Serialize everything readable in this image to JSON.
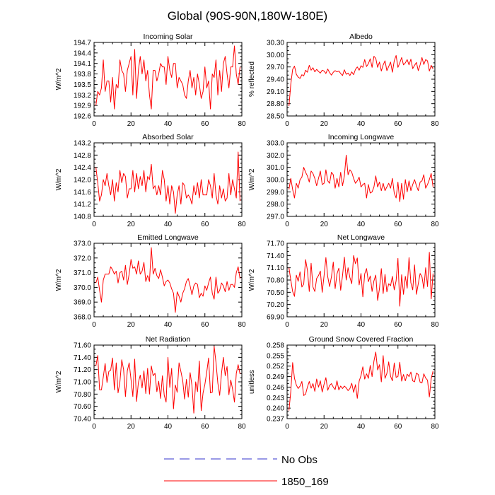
{
  "title": "Global (90S-90N,180W-180E)",
  "colors": {
    "series": "#ff0000",
    "obs": "#3333cc",
    "axis": "#000000"
  },
  "legend": [
    {
      "label": "No Obs",
      "style": "dashed",
      "color": "#3333cc"
    },
    {
      "label": "1850_169",
      "style": "solid",
      "color": "#ff0000"
    }
  ],
  "chart_data": [
    {
      "type": "line",
      "title": "Incoming Solar",
      "ylabel": "W/m^2",
      "xlabel": "",
      "xlim": [
        0,
        80
      ],
      "ylim": [
        192.6,
        194.7
      ],
      "xticks": [
        "0",
        "20",
        "40",
        "60",
        "80"
      ],
      "yticks": [
        "192.6",
        "192.9",
        "193.2",
        "193.5",
        "193.8",
        "194.1",
        "194.4",
        "194.7"
      ],
      "series": [
        {
          "name": "1850_169",
          "values": [
            192.9,
            193.3,
            193.2,
            193.4,
            194.2,
            193.3,
            193.6,
            193.6,
            193.0,
            193.7,
            192.8,
            193.5,
            193.4,
            194.2,
            193.9,
            193.8,
            193.3,
            193.9,
            194.1,
            194.3,
            193.2,
            194.5,
            193.1,
            193.9,
            194.3,
            193.8,
            194.2,
            193.6,
            193.9,
            193.2,
            192.8,
            193.9,
            193.9,
            193.6,
            193.8,
            194.1,
            194.0,
            194.0,
            193.5,
            194.3,
            193.9,
            193.7,
            194.1,
            194.1,
            193.4,
            193.7,
            193.6,
            193.5,
            193.2,
            193.1,
            193.6,
            193.9,
            193.4,
            193.7,
            193.2,
            193.8,
            193.5,
            193.1,
            193.3,
            194.0,
            193.4,
            193.6,
            192.8,
            193.8,
            193.7,
            194.2,
            193.2,
            193.9,
            193.3,
            194.1,
            194.3,
            193.8,
            193.4,
            194.0,
            194.0,
            194.6,
            193.8,
            193.5,
            194.0
          ]
        }
      ]
    },
    {
      "type": "line",
      "title": "Albedo",
      "ylabel": "% reflected",
      "xlabel": "",
      "xlim": [
        0,
        80
      ],
      "ylim": [
        28.5,
        30.3
      ],
      "xticks": [
        "0",
        "20",
        "40",
        "60",
        "80"
      ],
      "yticks": [
        "28.50",
        "28.80",
        "29.10",
        "29.40",
        "29.70",
        "30.00",
        "30.30"
      ],
      "series": [
        {
          "name": "1850_169",
          "values": [
            28.74,
            29.28,
            29.64,
            29.72,
            29.52,
            29.45,
            29.42,
            29.51,
            29.48,
            29.62,
            29.57,
            29.74,
            29.62,
            29.68,
            29.58,
            29.64,
            29.59,
            29.55,
            29.62,
            29.6,
            29.54,
            29.65,
            29.56,
            29.5,
            29.57,
            29.61,
            29.58,
            29.6,
            29.54,
            29.49,
            29.63,
            29.52,
            29.55,
            29.49,
            29.58,
            29.51,
            29.64,
            29.7,
            29.62,
            29.73,
            29.69,
            29.88,
            29.71,
            29.78,
            29.9,
            29.69,
            29.96,
            29.91,
            29.69,
            29.82,
            29.6,
            29.75,
            29.85,
            29.61,
            29.71,
            29.82,
            29.57,
            29.85,
            29.98,
            29.69,
            29.8,
            29.93,
            29.75,
            29.8,
            29.88,
            29.75,
            29.89,
            29.66,
            29.74,
            29.81,
            29.61,
            29.75,
            29.93,
            29.76,
            29.88,
            29.85,
            29.6,
            29.74,
            29.65
          ]
        }
      ]
    },
    {
      "type": "line",
      "title": "Absorbed Solar",
      "ylabel": "W/m^2",
      "xlabel": "",
      "xlim": [
        0,
        80
      ],
      "ylim": [
        140.8,
        143.2
      ],
      "xticks": [
        "0",
        "20",
        "40",
        "60",
        "80"
      ],
      "yticks": [
        "140.8",
        "141.2",
        "141.6",
        "142.0",
        "142.4",
        "142.8",
        "143.2"
      ],
      "series": [
        {
          "name": "1850_169",
          "values": [
            142.4,
            141.9,
            141.3,
            141.5,
            142.0,
            141.8,
            142.2,
            141.8,
            141.5,
            142.0,
            141.3,
            141.9,
            141.6,
            142.3,
            141.9,
            142.2,
            142.1,
            141.4,
            141.7,
            141.7,
            142.3,
            141.6,
            142.2,
            141.7,
            142.1,
            141.8,
            142.3,
            141.6,
            142.1,
            142.0,
            142.5,
            141.7,
            141.8,
            141.5,
            141.8,
            141.5,
            142.3,
            142.0,
            141.3,
            141.8,
            141.2,
            141.8,
            141.6,
            140.9,
            141.5,
            141.8,
            141.2,
            141.9,
            141.8,
            141.4,
            141.5,
            141.4,
            141.2,
            141.8,
            141.5,
            141.9,
            141.4,
            142.0,
            141.5,
            141.5,
            141.5,
            142.0,
            141.8,
            141.4,
            142.2,
            141.5,
            141.2,
            141.8,
            141.4,
            141.7,
            141.3,
            141.4,
            142.2,
            141.5,
            142.0,
            141.7,
            141.4,
            142.9,
            141.3
          ]
        }
      ]
    },
    {
      "type": "line",
      "title": "Incoming Longwave",
      "ylabel": "W/m^2",
      "xlabel": "",
      "xlim": [
        0,
        80
      ],
      "ylim": [
        297.0,
        303.0
      ],
      "xticks": [
        "0",
        "20",
        "40",
        "60",
        "80"
      ],
      "yticks": [
        "297.0",
        "298.0",
        "299.0",
        "300.0",
        "301.0",
        "302.0",
        "303.0"
      ],
      "series": [
        {
          "name": "1850_169",
          "values": [
            299.2,
            300.1,
            299.2,
            298.5,
            299.7,
            299.3,
            300.0,
            300.2,
            301.0,
            300.6,
            300.3,
            299.8,
            300.7,
            300.5,
            300.1,
            299.5,
            300.1,
            300.7,
            299.6,
            299.7,
            300.8,
            299.9,
            299.7,
            300.6,
            300.4,
            299.3,
            300.1,
            299.4,
            300.6,
            299.5,
            300.3,
            302.0,
            300.4,
            300.8,
            300.6,
            300.1,
            299.7,
            299.9,
            300.2,
            299.4,
            299.6,
            299.7,
            298.5,
            299.6,
            298.9,
            299.0,
            299.4,
            300.3,
            299.4,
            299.8,
            299.1,
            299.7,
            299.1,
            299.4,
            299.7,
            299.3,
            300.1,
            298.9,
            298.5,
            299.8,
            298.2,
            299.7,
            298.4,
            300.0,
            299.0,
            299.9,
            299.1,
            299.6,
            300.0,
            299.5,
            299.1,
            299.8,
            299.9,
            300.4,
            299.3,
            299.6,
            300.0,
            300.5,
            299.4
          ]
        }
      ]
    },
    {
      "type": "line",
      "title": "Emitted Longwave",
      "ylabel": "W/m^2",
      "xlabel": "",
      "xlim": [
        0,
        80
      ],
      "ylim": [
        368.0,
        373.0
      ],
      "xticks": [
        "0",
        "20",
        "40",
        "60",
        "80"
      ],
      "yticks": [
        "368.0",
        "369.0",
        "370.0",
        "371.0",
        "372.0",
        "373.0"
      ],
      "series": [
        {
          "name": "1850_169",
          "values": [
            370.3,
            370.7,
            369.8,
            369.0,
            370.5,
            370.9,
            370.9,
            370.9,
            371.4,
            371.2,
            370.9,
            371.1,
            370.3,
            371.0,
            371.1,
            370.5,
            371.5,
            370.2,
            370.9,
            371.9,
            371.3,
            371.4,
            370.9,
            371.8,
            370.9,
            371.1,
            371.7,
            370.4,
            370.8,
            370.4,
            372.7,
            370.9,
            371.3,
            370.8,
            370.6,
            371.2,
            370.7,
            370.1,
            370.4,
            370.5,
            370.3,
            369.9,
            369.6,
            368.3,
            369.7,
            369.4,
            369.0,
            369.6,
            369.9,
            370.4,
            370.6,
            370.1,
            369.5,
            370.1,
            370.3,
            370.2,
            369.3,
            369.6,
            369.4,
            370.1,
            369.8,
            370.3,
            370.7,
            369.6,
            369.2,
            370.7,
            369.6,
            369.8,
            370.3,
            370.1,
            369.7,
            370.4,
            369.8,
            370.2,
            370.2,
            370.0,
            371.0,
            371.4,
            370.6
          ]
        }
      ]
    },
    {
      "type": "line",
      "title": "Net Longwave",
      "ylabel": "W/m^2",
      "xlabel": "",
      "xlim": [
        0,
        80
      ],
      "ylim": [
        69.9,
        71.7
      ],
      "xticks": [
        "0",
        "20",
        "40",
        "60",
        "80"
      ],
      "yticks": [
        "69.90",
        "70.20",
        "70.50",
        "70.80",
        "71.10",
        "71.40",
        "71.70"
      ],
      "series": [
        {
          "name": "1850_169",
          "values": [
            71.1,
            70.8,
            70.52,
            70.4,
            70.92,
            70.77,
            71.0,
            70.63,
            70.7,
            71.3,
            71.04,
            70.52,
            71.21,
            70.63,
            70.52,
            70.84,
            70.91,
            71.02,
            70.5,
            70.9,
            71.35,
            70.88,
            70.64,
            70.88,
            71.24,
            70.59,
            70.95,
            71.09,
            70.55,
            70.91,
            71.36,
            70.8,
            71.1,
            70.86,
            70.71,
            71.4,
            71.2,
            71.34,
            70.68,
            70.96,
            70.39,
            70.95,
            71.08,
            70.76,
            70.9,
            70.52,
            70.78,
            70.92,
            70.3,
            70.59,
            71.08,
            70.47,
            70.94,
            70.51,
            70.71,
            70.66,
            70.89,
            70.56,
            70.78,
            71.33,
            70.16,
            70.93,
            70.45,
            70.89,
            70.6,
            71.35,
            70.73,
            70.56,
            71.17,
            70.45,
            70.71,
            70.96,
            70.88,
            70.59,
            71.1,
            70.64,
            71.48,
            70.34,
            70.96
          ]
        }
      ]
    },
    {
      "type": "line",
      "title": "Net Radiation",
      "ylabel": "W/m^2",
      "xlabel": "",
      "xlim": [
        0,
        80
      ],
      "ylim": [
        70.4,
        71.6
      ],
      "xticks": [
        "0",
        "20",
        "40",
        "60",
        "80"
      ],
      "yticks": [
        "70.40",
        "70.60",
        "70.80",
        "71.00",
        "71.20",
        "71.40",
        "71.60"
      ],
      "series": [
        {
          "name": "1850_169",
          "values": [
            71.26,
            71.43,
            70.87,
            70.87,
            71.08,
            71.3,
            70.99,
            71.17,
            71.19,
            71.39,
            70.87,
            71.31,
            70.82,
            71.0,
            71.36,
            71.2,
            70.76,
            71.18,
            71.31,
            71.04,
            70.76,
            71.37,
            70.68,
            70.99,
            71.11,
            70.9,
            71.18,
            70.81,
            71.22,
            70.8,
            71.26,
            71.1,
            71.14,
            70.84,
            71.01,
            70.73,
            71.1,
            70.78,
            70.67,
            71.4,
            70.91,
            71.22,
            70.56,
            70.95,
            70.83,
            71.31,
            71.17,
            71.02,
            70.72,
            71.04,
            70.75,
            71.15,
            70.94,
            70.49,
            71.0,
            70.84,
            71.34,
            70.53,
            70.82,
            70.96,
            71.16,
            71.39,
            70.82,
            70.83,
            71.58,
            71.32,
            70.98,
            70.78,
            71.14,
            71.4,
            71.1,
            71.25,
            70.79,
            71.03,
            70.88,
            70.67,
            71.14,
            71.28,
            71.13
          ]
        }
      ]
    },
    {
      "type": "line",
      "title": "Ground Snow Covered Fraction",
      "ylabel": "unitless",
      "xlabel": "",
      "xlim": [
        0,
        80
      ],
      "ylim": [
        0.237,
        0.258
      ],
      "xticks": [
        "0",
        "20",
        "40",
        "60",
        "80"
      ],
      "yticks": [
        "0.237",
        "0.240",
        "0.243",
        "0.246",
        "0.249",
        "0.252",
        "0.255",
        "0.258"
      ],
      "series": [
        {
          "name": "1850_169",
          "values": [
            0.2393,
            0.2448,
            0.253,
            0.2485,
            0.2466,
            0.2456,
            0.2463,
            0.2476,
            0.2436,
            0.244,
            0.246,
            0.2476,
            0.2457,
            0.247,
            0.2448,
            0.2483,
            0.246,
            0.2478,
            0.2446,
            0.2468,
            0.2487,
            0.2451,
            0.2465,
            0.247,
            0.246,
            0.2453,
            0.2478,
            0.2452,
            0.2463,
            0.2456,
            0.2463,
            0.2458,
            0.245,
            0.2456,
            0.2471,
            0.2445,
            0.2467,
            0.2428,
            0.2477,
            0.2493,
            0.2518,
            0.2483,
            0.2498,
            0.2485,
            0.2522,
            0.249,
            0.2534,
            0.256,
            0.2509,
            0.2524,
            0.2475,
            0.255,
            0.2485,
            0.2499,
            0.2532,
            0.2491,
            0.2478,
            0.2529,
            0.2488,
            0.249,
            0.2531,
            0.2477,
            0.2496,
            0.2478,
            0.2497,
            0.249,
            0.2503,
            0.2478,
            0.2475,
            0.25,
            0.2496,
            0.2474,
            0.2472,
            0.2498,
            0.2486,
            0.248,
            0.2432,
            0.2484,
            0.2506
          ]
        }
      ]
    }
  ]
}
